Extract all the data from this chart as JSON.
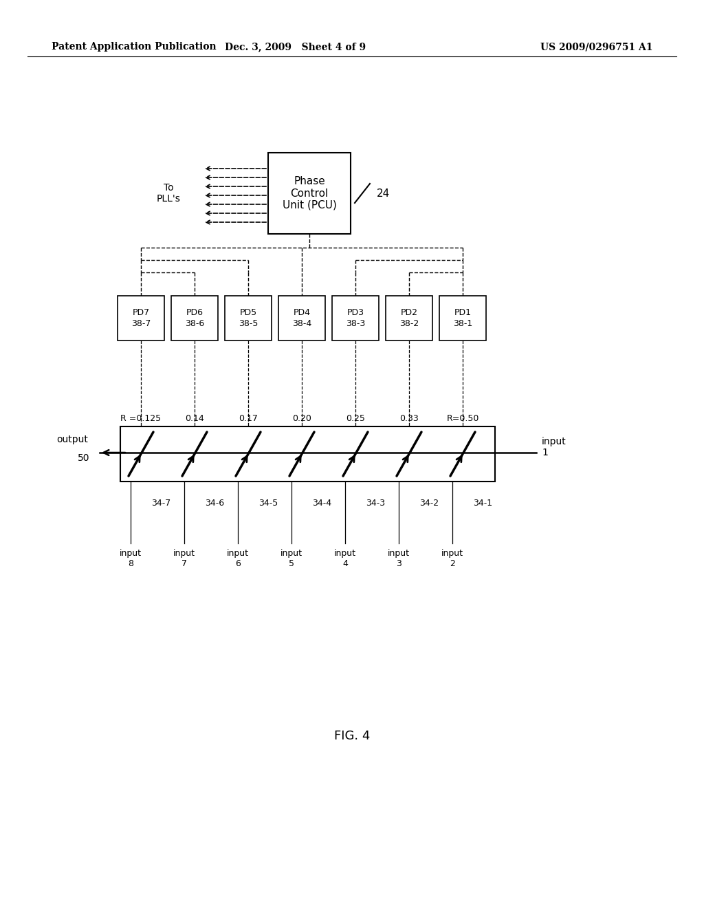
{
  "bg_color": "#ffffff",
  "header_left": "Patent Application Publication",
  "header_mid": "Dec. 3, 2009   Sheet 4 of 9",
  "header_right": "US 2009/0296751 A1",
  "fig_label": "FIG. 4",
  "pcu_label": "Phase\nControl\nUnit (PCU)",
  "pcu_num": "24",
  "pll_label": "To\nPLL's",
  "pd_labels": [
    "PD7\n38-7",
    "PD6\n38-6",
    "PD5\n38-5",
    "PD4\n38-4",
    "PD3\n38-3",
    "PD2\n38-2",
    "PD1\n38-1"
  ],
  "r_labels": [
    "R =0.125",
    "0.14",
    "0.17",
    "0.20",
    "0.25",
    "0.33",
    "R=0.50"
  ],
  "coupler_labels": [
    "34-7",
    "34-6",
    "34-5",
    "34-4",
    "34-3",
    "34-2",
    "34-1"
  ],
  "input_labels": [
    "input\n8",
    "input\n7",
    "input\n6",
    "input\n5",
    "input\n4",
    "input\n3",
    "input\n2"
  ]
}
